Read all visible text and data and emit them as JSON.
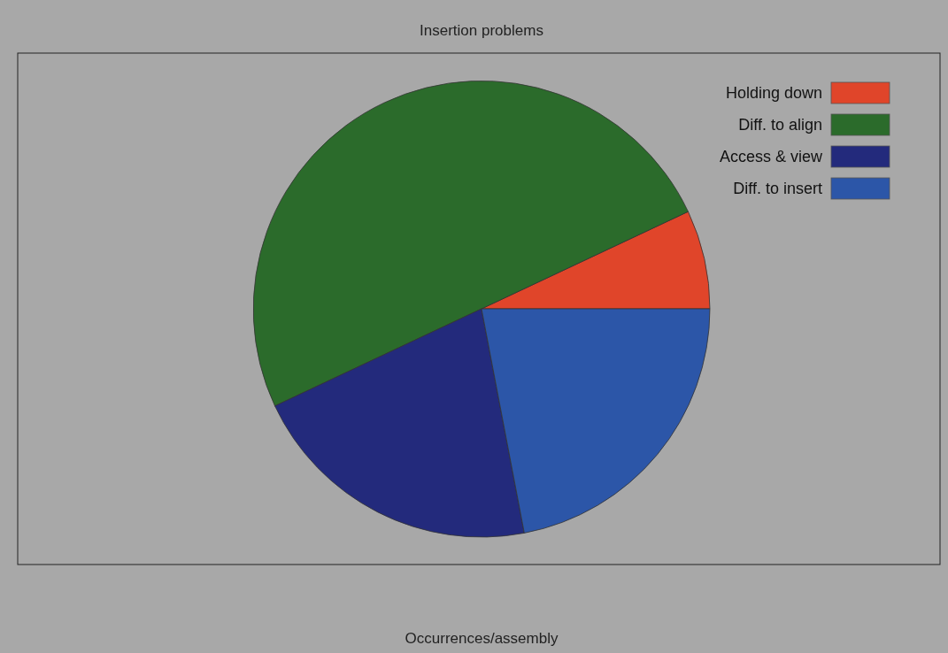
{
  "chart_data": {
    "type": "pie",
    "title": "Insertion problems",
    "xlabel": "Occurrences/assembly",
    "categories": [
      "Holding down",
      "Diff. to align",
      "Access & view",
      "Diff. to insert"
    ],
    "values": [
      7,
      50,
      21,
      22
    ],
    "colors": [
      "#e0452a",
      "#2b6b2b",
      "#232a7c",
      "#2c56a8"
    ],
    "legend": "top right"
  }
}
